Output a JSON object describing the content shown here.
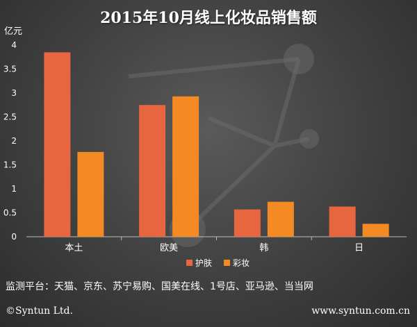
{
  "chart_data": {
    "type": "bar",
    "title": "2015年10月线上化妆品销售额",
    "ylabel": "亿元",
    "xlabel": "",
    "categories": [
      "本土",
      "欧美",
      "韩",
      "日"
    ],
    "series": [
      {
        "name": "护肤",
        "values": [
          3.85,
          2.75,
          0.57,
          0.63
        ],
        "color": "#e8663f"
      },
      {
        "name": "彩妆",
        "values": [
          1.77,
          2.93,
          0.73,
          0.27
        ],
        "color": "#f48a24"
      }
    ],
    "ylim": [
      0,
      4
    ],
    "yticks": [
      "0",
      "0.5",
      "1",
      "1.5",
      "2",
      "2.5",
      "3",
      "3.5",
      "4"
    ],
    "grid": false,
    "legend_position": "bottom-center"
  },
  "footer": {
    "platforms": "监测平台：天猫、京东、苏宁易购、国美在线、1号店、亚马逊、当当网",
    "copyright": "©Syntun Ltd.",
    "website": "www.syntun.com.cn"
  }
}
